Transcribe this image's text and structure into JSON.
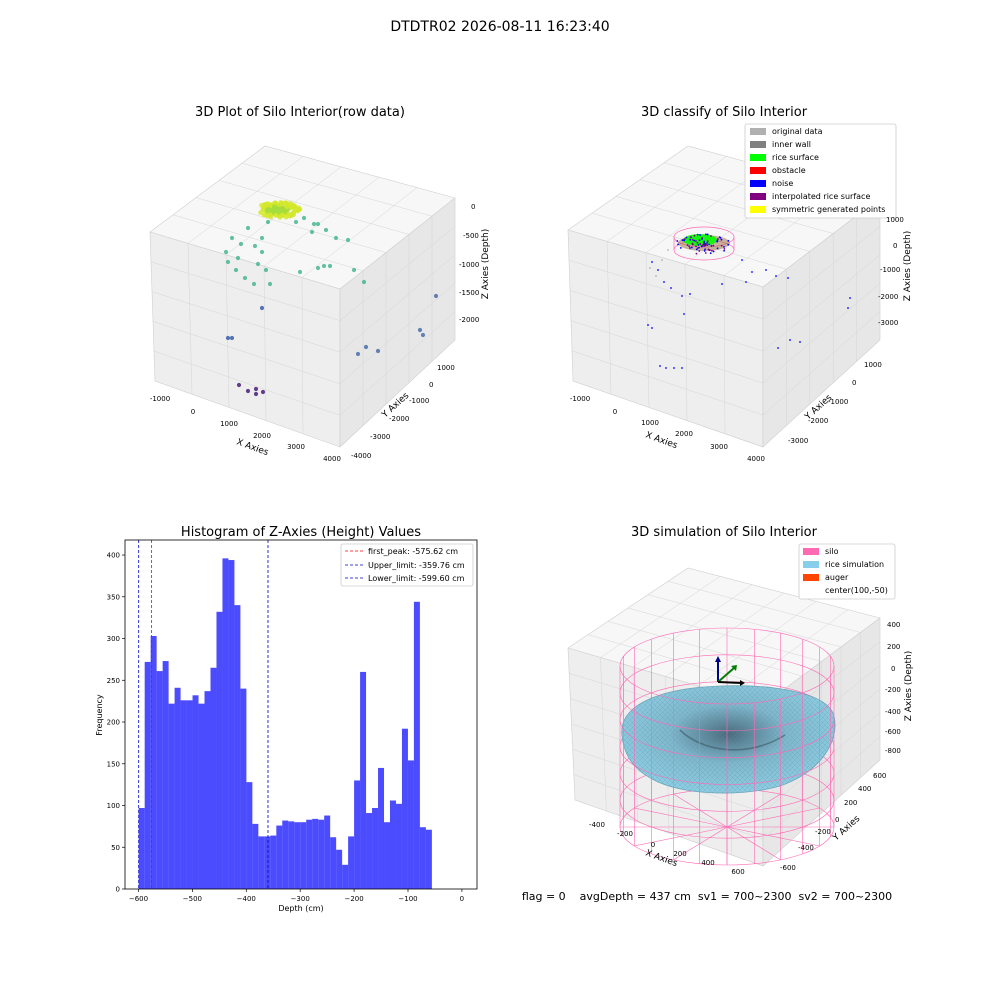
{
  "figure": {
    "suptitle": "DTDTR02 2026-08-11 16:23:40",
    "footer": "flag = 0    avgDepth = 437 cm  sv1 = 700~2300  sv2 = 700~2300"
  },
  "panels": {
    "raw": {
      "title": "3D Plot of Silo Interior(row data)",
      "xlabel": "X Axies",
      "ylabel": "Y Axies",
      "zlabel": "Z Axies (Depth)",
      "xticks": [
        "-1000",
        "0",
        "1000",
        "2000",
        "3000",
        "4000"
      ],
      "yticks": [
        "-4000",
        "-3000",
        "-2000",
        "-1000",
        "0",
        "1000"
      ],
      "zticks": [
        "-2000",
        "-1500",
        "-1000",
        "-500",
        "0"
      ]
    },
    "classify": {
      "title": "3D classify of Silo Interior",
      "xlabel": "X Axies",
      "ylabel": "Y Axies",
      "zlabel": "Z Axies (Depth)",
      "xticks": [
        "-1000",
        "0",
        "1000",
        "2000",
        "3000",
        "4000"
      ],
      "yticks": [
        "-3000",
        "-2000",
        "-1000",
        "0",
        "1000"
      ],
      "zticks": [
        "-3000",
        "-2000",
        "-1000",
        "0",
        "1000"
      ],
      "legend": [
        {
          "label": "original data",
          "color": "#b0b0b0"
        },
        {
          "label": "inner wall",
          "color": "#808080"
        },
        {
          "label": "rice surface",
          "color": "#00ff00"
        },
        {
          "label": "obstacle",
          "color": "#ff0000"
        },
        {
          "label": "noise",
          "color": "#0000ff"
        },
        {
          "label": "interpolated rice surface",
          "color": "#800080"
        },
        {
          "label": "symmetric generated points",
          "color": "#ffff00"
        }
      ]
    },
    "sim": {
      "title": "3D simulation of Silo Interior",
      "xlabel": "X Axies",
      "ylabel": "Y Axies",
      "zlabel": "Z Axies (Depth)",
      "xticks": [
        "-400",
        "-200",
        "0",
        "200",
        "400",
        "600"
      ],
      "yticks": [
        "-600",
        "-400",
        "-200",
        "0",
        "200",
        "400",
        "600"
      ],
      "zticks": [
        "-800",
        "-600",
        "-400",
        "-200",
        "0",
        "200",
        "400"
      ],
      "legend": [
        {
          "label": "silo",
          "color": "#ff69b4"
        },
        {
          "label": "rice simulation",
          "color": "#87ceeb"
        },
        {
          "label": "auger",
          "color": "#ff4500"
        },
        {
          "label": "center(100,-50)",
          "color": ""
        }
      ]
    }
  },
  "chart_data": [
    {
      "type": "bar",
      "title": "Histogram of Z-Axies (Height) Values",
      "xlabel": "Depth (cm)",
      "ylabel": "Frequency",
      "xlim": [
        -625,
        28
      ],
      "ylim": [
        0,
        418
      ],
      "xticks": [
        -600,
        -500,
        -400,
        -300,
        -200,
        -100,
        0
      ],
      "yticks": [
        0,
        50,
        100,
        150,
        200,
        250,
        300,
        350,
        400
      ],
      "bin_start": -599.6,
      "bin_width": 11.1,
      "values": [
        97,
        272,
        303,
        261,
        273,
        222,
        241,
        226,
        226,
        232,
        222,
        237,
        265,
        332,
        396,
        394,
        340,
        240,
        128,
        78,
        63,
        63,
        64,
        76,
        82,
        81,
        80,
        80,
        83,
        84,
        83,
        88,
        62,
        47,
        29,
        63,
        130,
        260,
        91,
        97,
        145,
        80,
        106,
        102,
        192,
        154,
        344,
        74,
        71
      ],
      "color": "#0000ff",
      "lines": [
        {
          "label": "first_peak: -575.62 cm",
          "x": -575.62,
          "color": "#ff0000"
        },
        {
          "label": "Upper_limit: -359.76 cm",
          "x": -359.76,
          "color": "#0000cd"
        },
        {
          "label": "Lower_limit: -599.60 cm",
          "x": -599.6,
          "color": "#0000cd"
        }
      ],
      "legend_position": "top-right"
    }
  ]
}
